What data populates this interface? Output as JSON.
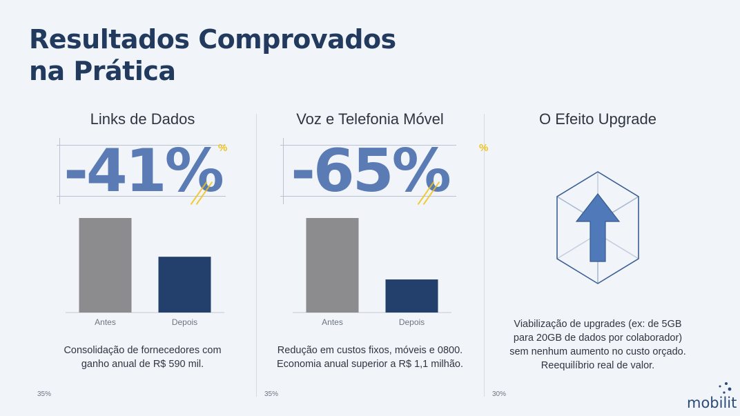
{
  "page": {
    "title_line1": "Resultados Comprovados",
    "title_line2": "na Prática"
  },
  "columns": [
    {
      "title": "Links de Dados",
      "stat": "-41%",
      "stat_mark": "%",
      "desc_line1": "Consolidação de fornecedores com",
      "desc_line2": "ganho anual de R$ 590 mil.",
      "footnote": "35%"
    },
    {
      "title": "Voz e Telefonia Móvel",
      "stat": "-65%",
      "stat_mark": "%",
      "desc_line1": "Redução em custos fixos, móveis e 0800.",
      "desc_line2": "Economia anual superior a R$ 1,1 milhão.",
      "footnote": "35%"
    },
    {
      "title": "O Efeito Upgrade",
      "icon": "arrow-up-cube-icon",
      "desc_line1": "Viabilização de upgrades (ex: de 5GB",
      "desc_line2": "para 20GB de dados por colaborador)",
      "desc_line3": "sem nenhum aumento no custo orçado.",
      "desc_line4": "Reequilíbrio real de valor.",
      "footnote": "30%"
    }
  ],
  "chart_data": [
    {
      "type": "bar",
      "categories": [
        "Antes",
        "Depois"
      ],
      "values": [
        100,
        59
      ],
      "colors": [
        "#8c8c8f",
        "#233f6b"
      ],
      "ylim": [
        0,
        100
      ],
      "grid": false
    },
    {
      "type": "bar",
      "categories": [
        "Antes",
        "Depois"
      ],
      "values": [
        100,
        35
      ],
      "colors": [
        "#8c8c8f",
        "#233f6b"
      ],
      "ylim": [
        0,
        100
      ],
      "grid": false
    }
  ],
  "logo": {
    "text": "mobilit"
  },
  "colors": {
    "background": "#f1f4f9",
    "title": "#223a5e",
    "stat": "#5b7bb4",
    "accent_yellow": "#f0c419",
    "bar_before": "#8c8c8f",
    "bar_after": "#233f6b"
  }
}
